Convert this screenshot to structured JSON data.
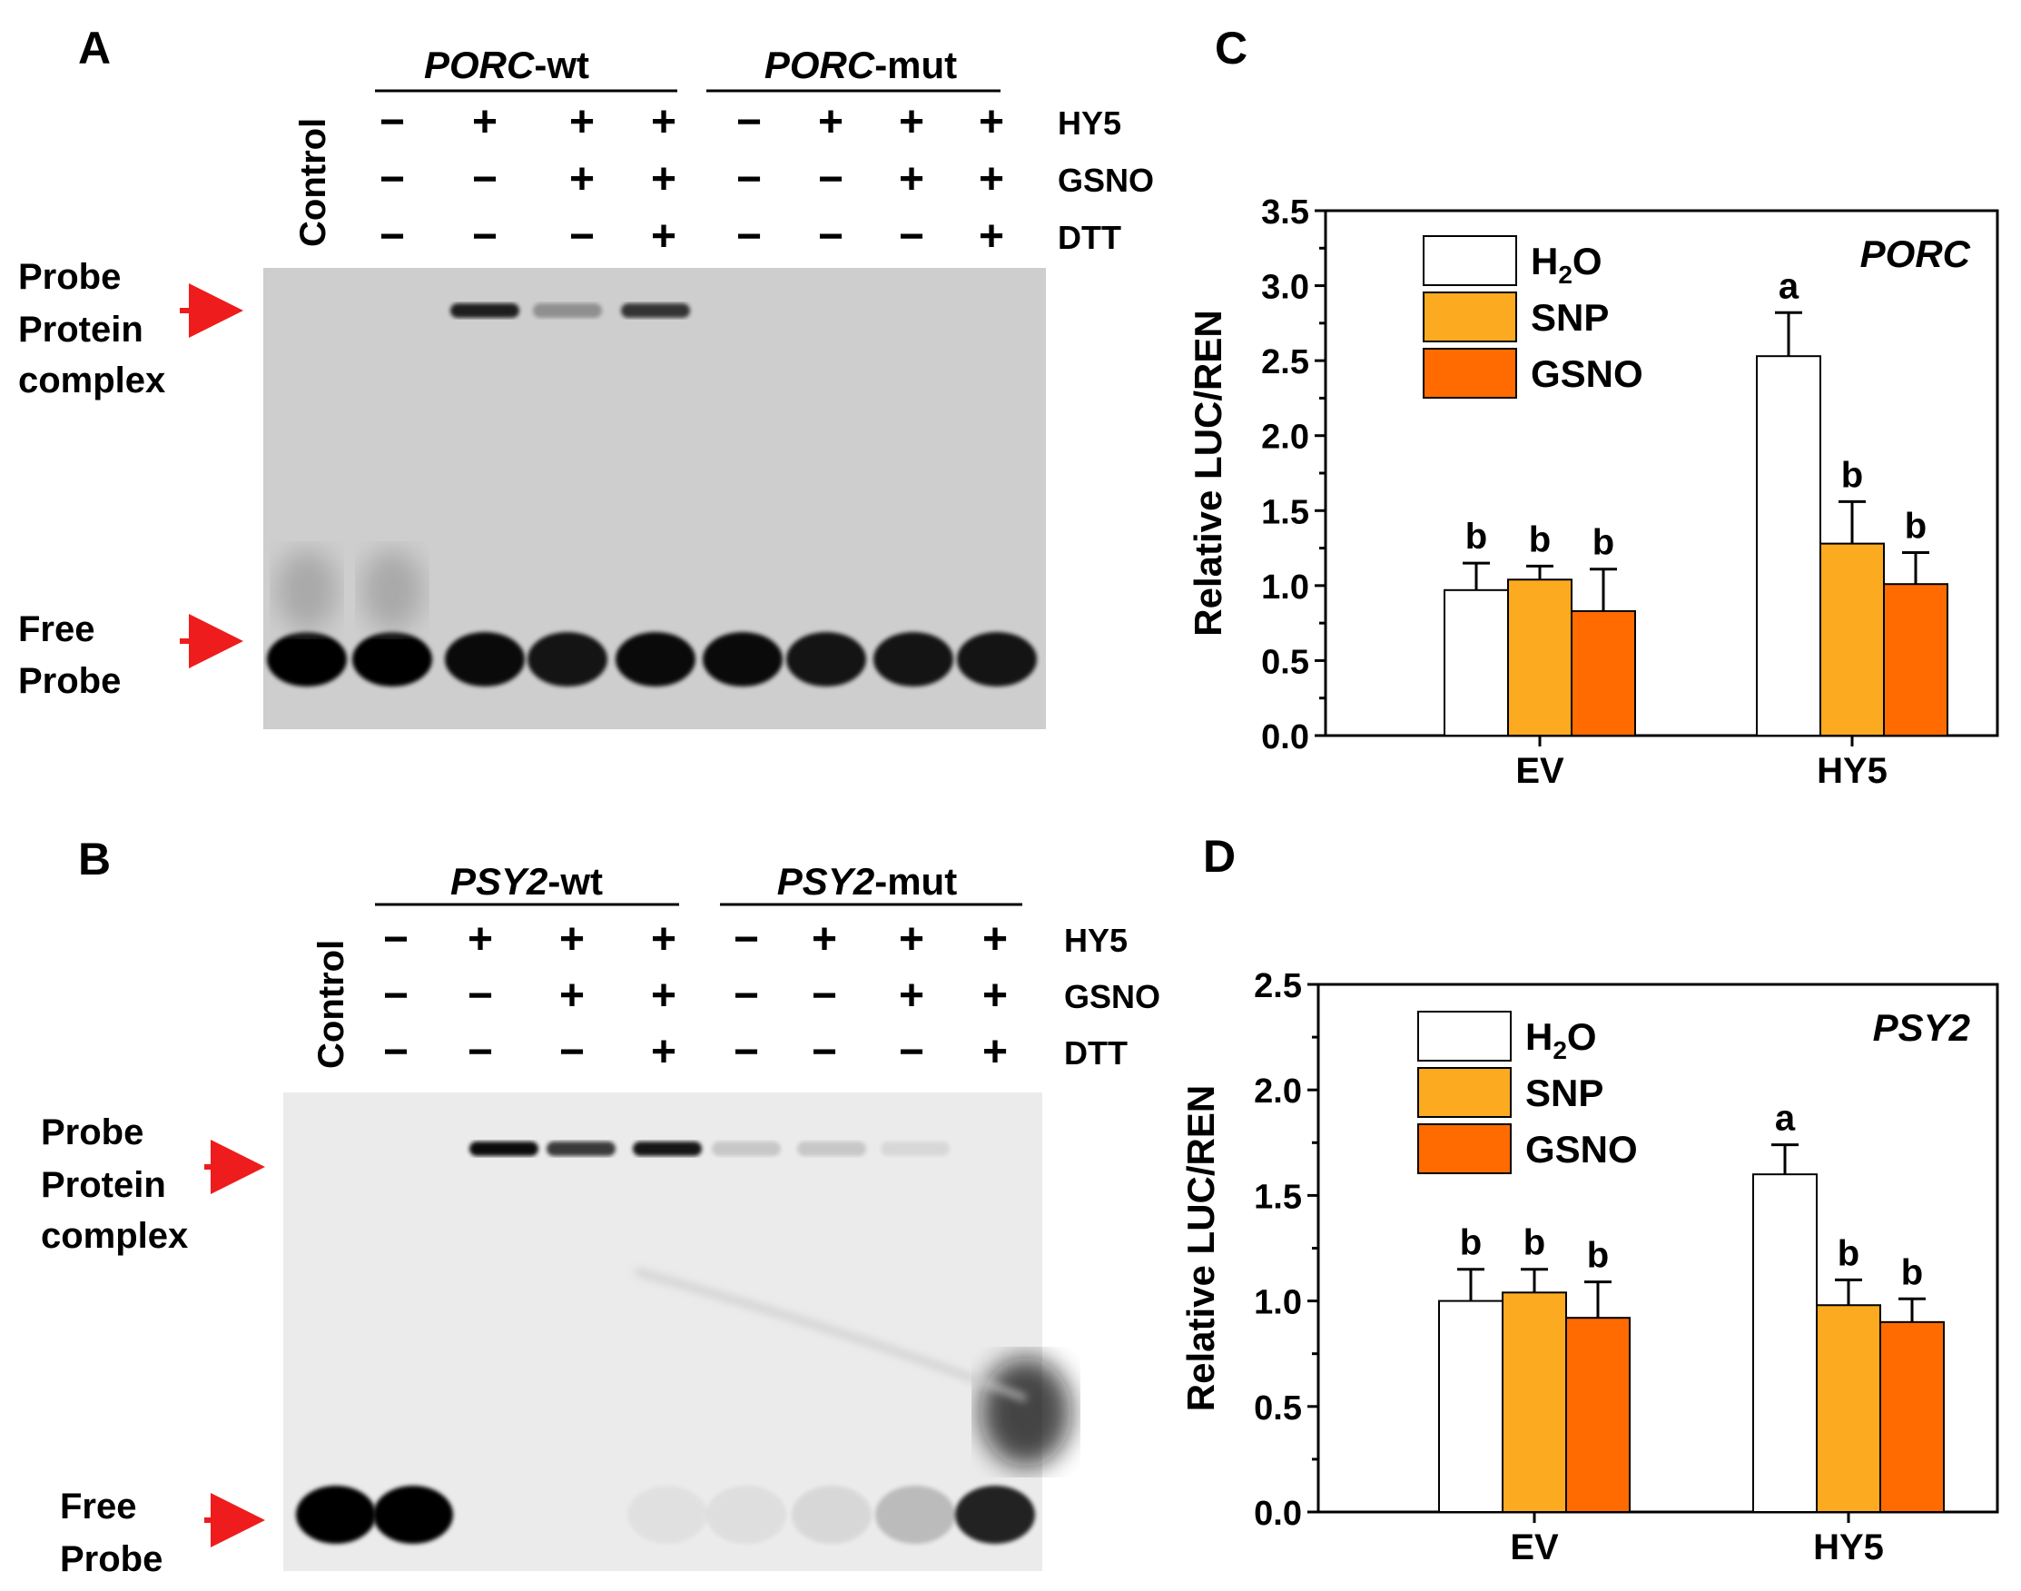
{
  "panels": {
    "a": {
      "letter": "A",
      "probe": "PORC",
      "wt_suffix": "-wt",
      "mut_suffix": "-mut"
    },
    "b": {
      "letter": "B",
      "probe": "PSY2",
      "wt_suffix": "-wt",
      "mut_suffix": "-mut"
    },
    "c": {
      "letter": "C"
    },
    "d": {
      "letter": "D"
    }
  },
  "gel": {
    "control_label": "Control",
    "row_labels": [
      "HY5",
      "GSNO",
      "DTT"
    ],
    "rows": {
      "HY5": [
        "−",
        "+",
        "+",
        "+",
        "−",
        "+",
        "+",
        "+"
      ],
      "GSNO": [
        "−",
        "−",
        "+",
        "+",
        "−",
        "−",
        "+",
        "+"
      ],
      "DTT": [
        "−",
        "−",
        "−",
        "+",
        "−",
        "−",
        "−",
        "+"
      ]
    },
    "complex_label": [
      "Probe",
      "Protein",
      "complex"
    ],
    "free_label": [
      "Free",
      "Probe"
    ],
    "colors": {
      "arrow": "#ee1c1c",
      "band": "#050505"
    },
    "a_complex_intensity": [
      0,
      0,
      0.85,
      0.3,
      0.75,
      0,
      0,
      0,
      0
    ],
    "a_free_intensity": [
      1,
      1,
      0.95,
      0.9,
      0.95,
      0.95,
      0.9,
      0.9,
      0.9
    ],
    "b_complex_intensity": [
      0,
      0,
      0.95,
      0.75,
      0.9,
      0.15,
      0.15,
      0.08,
      0
    ],
    "b_free_intensity": [
      1,
      1,
      0,
      0,
      0.04,
      0.05,
      0.08,
      0.2,
      0.85
    ]
  },
  "chart_data": [
    {
      "type": "bar",
      "panel": "C",
      "gene": "PORC",
      "categories": [
        "EV",
        "HY5"
      ],
      "series": [
        {
          "name": "H2O",
          "color": "#ffffff",
          "values": [
            0.97,
            2.53
          ],
          "errors": [
            0.18,
            0.29
          ],
          "letters": [
            "b",
            "a"
          ]
        },
        {
          "name": "SNP",
          "color": "#fcaa1f",
          "values": [
            1.04,
            1.28
          ],
          "errors": [
            0.09,
            0.28
          ],
          "letters": [
            "b",
            "b"
          ]
        },
        {
          "name": "GSNO",
          "color": "#ff6b00",
          "values": [
            0.83,
            1.01
          ],
          "errors": [
            0.28,
            0.21
          ],
          "letters": [
            "b",
            "b"
          ]
        }
      ],
      "ylabel": "Relative LUC/REN",
      "ylim": [
        0,
        3.5
      ],
      "yticks": [
        "0.0",
        "0.5",
        "1.0",
        "1.5",
        "2.0",
        "2.5",
        "3.0",
        "3.5"
      ],
      "legend": "top-left"
    },
    {
      "type": "bar",
      "panel": "D",
      "gene": "PSY2",
      "categories": [
        "EV",
        "HY5"
      ],
      "series": [
        {
          "name": "H2O",
          "color": "#ffffff",
          "values": [
            1.0,
            1.6
          ],
          "errors": [
            0.15,
            0.14
          ],
          "letters": [
            "b",
            "a"
          ]
        },
        {
          "name": "SNP",
          "color": "#fcaa1f",
          "values": [
            1.04,
            0.98
          ],
          "errors": [
            0.11,
            0.12
          ],
          "letters": [
            "b",
            "b"
          ]
        },
        {
          "name": "GSNO",
          "color": "#ff6b00",
          "values": [
            0.92,
            0.9
          ],
          "errors": [
            0.17,
            0.11
          ],
          "letters": [
            "b",
            "b"
          ]
        }
      ],
      "ylabel": "Relative LUC/REN",
      "ylim": [
        0,
        2.5
      ],
      "yticks": [
        "0.0",
        "0.5",
        "1.0",
        "1.5",
        "2.0",
        "2.5"
      ],
      "legend": "top-left"
    }
  ]
}
